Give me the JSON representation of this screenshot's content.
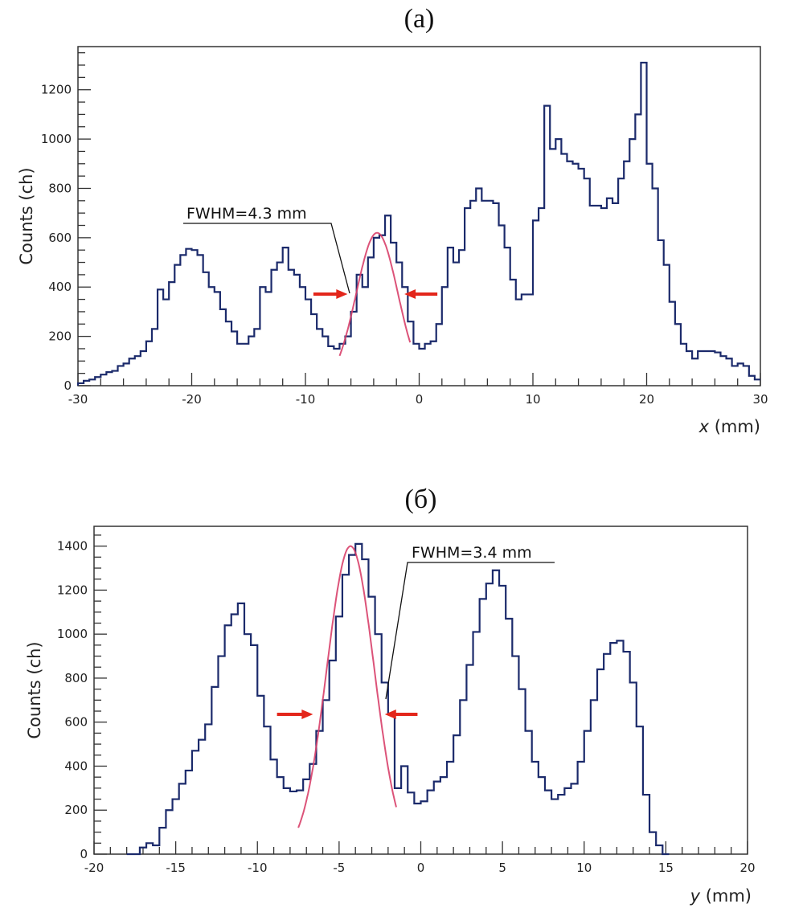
{
  "chart_data": [
    {
      "type": "histogram",
      "panel_label": "(a)",
      "xlabel_var": "x",
      "xlabel_unit": " (mm)",
      "ylabel": "Counts (ch)",
      "xlim": [
        -30,
        30
      ],
      "ylim": [
        0,
        1375
      ],
      "xticks": [
        -30,
        -20,
        -10,
        0,
        10,
        20,
        30
      ],
      "yticks": [
        0,
        200,
        400,
        600,
        800,
        1000,
        1200
      ],
      "x_minor_step": 2,
      "y_minor_step": 50,
      "bin_width": 0.5,
      "bin_start": -30,
      "values": [
        10,
        20,
        25,
        35,
        45,
        55,
        60,
        80,
        90,
        110,
        120,
        140,
        180,
        230,
        390,
        350,
        420,
        490,
        530,
        555,
        550,
        530,
        460,
        400,
        380,
        310,
        260,
        220,
        170,
        170,
        200,
        230,
        400,
        380,
        470,
        500,
        560,
        470,
        450,
        400,
        350,
        290,
        230,
        200,
        160,
        150,
        170,
        200,
        300,
        450,
        400,
        520,
        600,
        610,
        690,
        580,
        500,
        400,
        260,
        170,
        150,
        170,
        180,
        250,
        400,
        560,
        500,
        550,
        720,
        750,
        800,
        750,
        750,
        740,
        650,
        560,
        430,
        350,
        370,
        370,
        670,
        720,
        1135,
        960,
        1000,
        940,
        910,
        900,
        880,
        840,
        730,
        730,
        720,
        760,
        740,
        840,
        910,
        1000,
        1100,
        1310,
        900,
        800,
        590,
        490,
        340,
        250,
        170,
        140,
        110,
        140,
        140,
        140,
        135,
        120,
        110,
        80,
        90,
        80,
        40,
        25
      ],
      "fit": {
        "type": "gaussian",
        "center": -3.7,
        "fwhm": 4.3,
        "amplitude": 620,
        "range": [
          -7,
          -0.8
        ]
      },
      "annotation": "FWHM=4.3 mm",
      "colors": {
        "histogram": "#1b2a6b",
        "fit": "#d8406a",
        "arrows": "#e3261b"
      }
    },
    {
      "type": "histogram",
      "panel_label": "(б)",
      "xlabel_var": "y",
      "xlabel_unit": " (mm)",
      "ylabel": "Counts (ch)",
      "xlim": [
        -20,
        20
      ],
      "ylim": [
        0,
        1490
      ],
      "xticks": [
        -20,
        -15,
        -10,
        -5,
        0,
        5,
        10,
        15,
        20
      ],
      "yticks": [
        0,
        200,
        400,
        600,
        800,
        1000,
        1200,
        1400
      ],
      "x_minor_step": 1,
      "y_minor_step": 50,
      "bin_width": 0.4,
      "bin_start": -18,
      "values": [
        0,
        0,
        30,
        50,
        40,
        120,
        200,
        250,
        320,
        380,
        470,
        520,
        590,
        760,
        900,
        1040,
        1090,
        1140,
        1000,
        950,
        720,
        580,
        430,
        350,
        300,
        285,
        290,
        340,
        410,
        560,
        700,
        880,
        1080,
        1270,
        1360,
        1410,
        1340,
        1170,
        1000,
        780,
        640,
        300,
        400,
        280,
        230,
        240,
        290,
        330,
        350,
        420,
        540,
        700,
        860,
        1010,
        1160,
        1230,
        1290,
        1220,
        1070,
        900,
        750,
        560,
        420,
        350,
        290,
        250,
        270,
        300,
        320,
        420,
        560,
        700,
        840,
        910,
        960,
        970,
        920,
        780,
        580,
        270,
        100,
        40,
        0
      ],
      "fit": {
        "type": "gaussian",
        "center": -4.3,
        "fwhm": 3.4,
        "amplitude": 1400,
        "range": [
          -7.5,
          -1.5
        ]
      },
      "annotation": "FWHM=3.4 mm",
      "colors": {
        "histogram": "#1b2a6b",
        "fit": "#d8406a",
        "arrows": "#e3261b"
      }
    }
  ]
}
